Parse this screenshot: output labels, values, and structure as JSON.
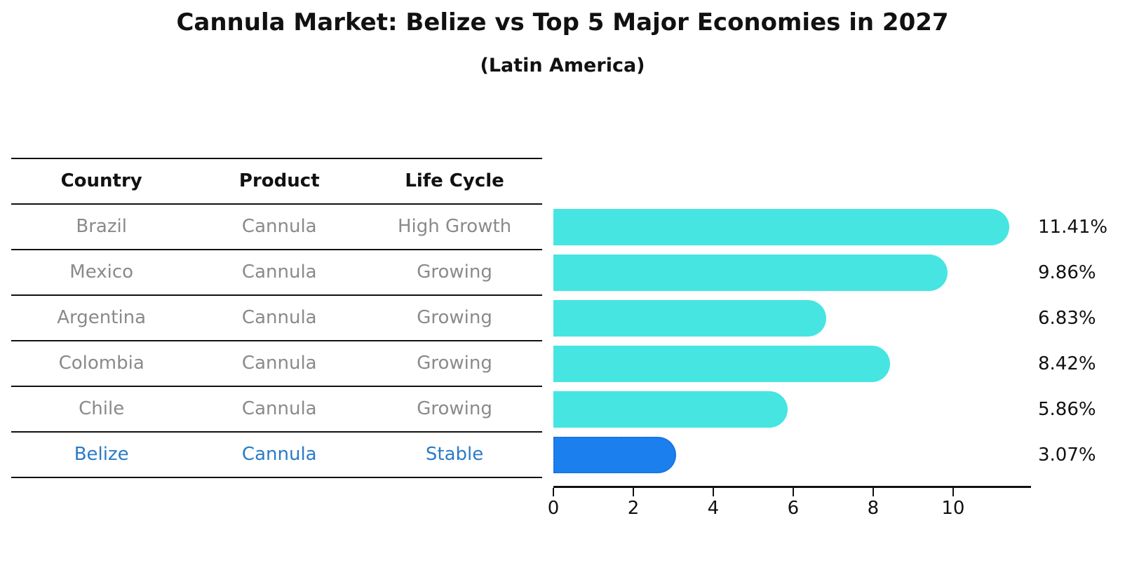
{
  "title": "Cannula Market: Belize vs Top 5 Major Economies in 2027",
  "subtitle": "(Latin America)",
  "table": {
    "headers": [
      "Country",
      "Product",
      "Life Cycle"
    ],
    "rows": [
      {
        "country": "Brazil",
        "product": "Cannula",
        "life_cycle": "High Growth"
      },
      {
        "country": "Mexico",
        "product": "Cannula",
        "life_cycle": "Growing"
      },
      {
        "country": "Argentina",
        "product": "Cannula",
        "life_cycle": "Growing"
      },
      {
        "country": "Colombia",
        "product": "Cannula",
        "life_cycle": "Growing"
      },
      {
        "country": "Chile",
        "product": "Cannula",
        "life_cycle": "Growing"
      },
      {
        "country": "Belize",
        "product": "Cannula",
        "life_cycle": "Stable"
      }
    ]
  },
  "chart_data": {
    "type": "bar",
    "orientation": "horizontal",
    "categories": [
      "Brazil",
      "Mexico",
      "Argentina",
      "Colombia",
      "Chile",
      "Belize"
    ],
    "values": [
      11.41,
      9.86,
      6.83,
      8.42,
      5.86,
      3.07
    ],
    "value_labels": [
      "11.41%",
      "9.86%",
      "6.83%",
      "8.42%",
      "5.86%",
      "3.07%"
    ],
    "xticks": [
      0,
      2,
      4,
      6,
      8,
      10
    ],
    "xlim": [
      0,
      11.95
    ],
    "grid": false,
    "legend": "none",
    "highlight_category": "Belize",
    "bar_style": "rounded-right-cap",
    "highlight_style": "dotted-border"
  },
  "colors": {
    "bar": "#46e5e2",
    "highlight_bar": "#1b80ee",
    "highlight_border": "#1a6ade",
    "highlight_text": "#2b7bc6",
    "row_text": "#8a8a8a",
    "axis": "#111111"
  }
}
